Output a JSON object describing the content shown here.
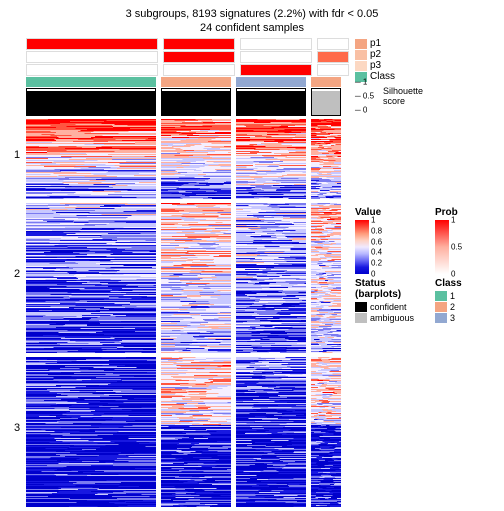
{
  "title": "3 subgroups, 8193 signatures (2.2%) with fdr < 0.05",
  "subtitle": "24 confident samples",
  "row_groups": [
    {
      "label": "1",
      "height": 80
    },
    {
      "label": "2",
      "height": 150
    },
    {
      "label": "3",
      "height": 150
    }
  ],
  "col_groups": [
    {
      "width": 130,
      "p1": "#ff0000",
      "p2": "#ffffff",
      "p3": "#ffffff",
      "class_color": "#5bc0a0"
    },
    {
      "width": 70,
      "p1": "#ff0000",
      "p2": "#ff0000",
      "p3": "#ffffff",
      "class_color": "#f4a582"
    },
    {
      "width": 70,
      "p1": "#ffffff",
      "p2": "#ffffff",
      "p3": "#ff0000",
      "class_color": "#92a8d1"
    },
    {
      "width": 30,
      "p1": "#ffffff",
      "p2": "#ff6a4a",
      "p3": "#ffffff",
      "class_color": "#f4a582"
    }
  ],
  "col_gap": 5,
  "annot_labels": [
    "p1",
    "p2",
    "p3",
    "Class"
  ],
  "silhouette_label": "Silhouette\nscore",
  "sil_ticks": [
    "1",
    "0.5",
    "0"
  ],
  "value_legend": {
    "title": "Value",
    "ticks": [
      "1",
      "0.8",
      "0.6",
      "0.4",
      "0.2",
      "0"
    ],
    "gradient": "linear-gradient(to bottom,#ff0000,#ff4d3a,#ff9a7a,#ffd0c0,#f0eaff,#b8b8ff,#6a6af5,#1818e0,#0000cc)"
  },
  "prob_legend": {
    "title": "Prob",
    "ticks": [
      "1",
      "0.5",
      "0"
    ],
    "gradient": "linear-gradient(to bottom,#ff0000,#ffb0a0,#ffffff)"
  },
  "status_legend": {
    "title": "Status (barplots)",
    "items": [
      {
        "label": "confident",
        "color": "#000000"
      },
      {
        "label": "ambiguous",
        "color": "#bfbfbf"
      }
    ]
  },
  "class_legend": {
    "title": "Class",
    "items": [
      {
        "label": "1",
        "color": "#5bc0a0"
      },
      {
        "label": "2",
        "color": "#f4a582"
      },
      {
        "label": "3",
        "color": "#92a8d1"
      }
    ]
  },
  "heatmap_palette": {
    "red_hi": "#ff0000",
    "red_mid": "#ff5540",
    "red_lo": "#ffb0a0",
    "white": "#f5efff",
    "blue_lo": "#c8c8ff",
    "blue_mid": "#7a7af0",
    "blue_hi": "#1818e0",
    "blue_deep": "#0000cc"
  },
  "sil_ambiguous_col": 3
}
